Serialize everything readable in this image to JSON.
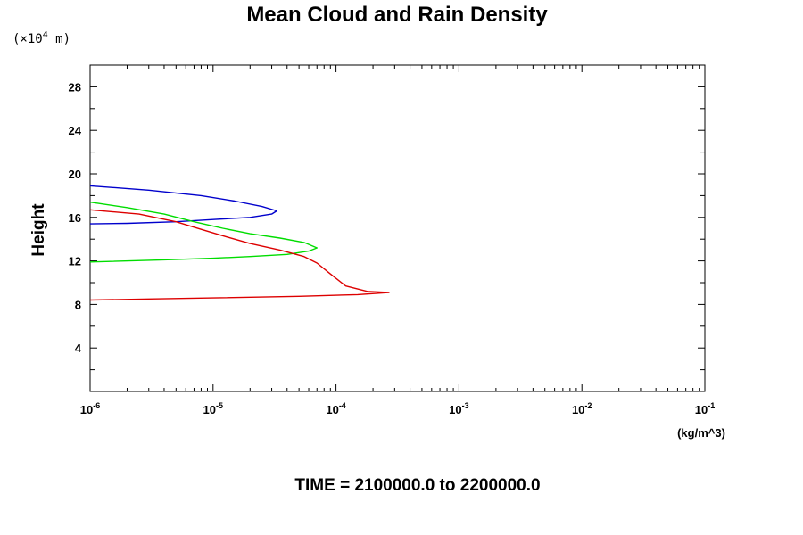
{
  "chart_data": {
    "type": "line",
    "title": "Mean Cloud and Rain Density",
    "ylabel": "Height",
    "y_scale_label_prefix": "(×10",
    "y_scale_exponent": "4",
    "y_scale_label_unit": " m)",
    "x_unit_label": "(kg/m^3)",
    "footer": "TIME = 2100000.0 to 2200000.0",
    "x_scale": "log",
    "xlim": [
      1e-06,
      0.1
    ],
    "ylim": [
      0,
      30
    ],
    "y_ticks": [
      4,
      8,
      12,
      16,
      20,
      24,
      28
    ],
    "y_tick_labels": [
      "4",
      "8",
      "12",
      "16",
      "20",
      "24",
      "28"
    ],
    "x_ticks": [
      {
        "base": "10",
        "exp": "-6",
        "value": 1e-06
      },
      {
        "base": "10",
        "exp": "-5",
        "value": 1e-05
      },
      {
        "base": "10",
        "exp": "-4",
        "value": 0.0001
      },
      {
        "base": "10",
        "exp": "-3",
        "value": 0.001
      },
      {
        "base": "10",
        "exp": "-2",
        "value": 0.01
      },
      {
        "base": "10",
        "exp": "-1",
        "value": 0.1
      }
    ],
    "grid": false,
    "legend": "none",
    "series": [
      {
        "color": "#0000cc",
        "points": [
          [
            1e-06,
            18.9
          ],
          [
            3e-06,
            18.5
          ],
          [
            8e-06,
            18.0
          ],
          [
            1.5e-05,
            17.5
          ],
          [
            2.5e-05,
            17.0
          ],
          [
            3.3e-05,
            16.6
          ],
          [
            3e-05,
            16.3
          ],
          [
            2e-05,
            16.0
          ],
          [
            1e-05,
            15.8
          ],
          [
            5e-06,
            15.6
          ],
          [
            2e-06,
            15.45
          ],
          [
            1e-06,
            15.4
          ]
        ]
      },
      {
        "color": "#00dd00",
        "points": [
          [
            1e-06,
            17.4
          ],
          [
            2e-06,
            16.9
          ],
          [
            4e-06,
            16.3
          ],
          [
            7e-06,
            15.6
          ],
          [
            1.2e-05,
            15.0
          ],
          [
            2e-05,
            14.5
          ],
          [
            3.5e-05,
            14.1
          ],
          [
            5.5e-05,
            13.7
          ],
          [
            7e-05,
            13.2
          ],
          [
            6e-05,
            12.9
          ],
          [
            4e-05,
            12.6
          ],
          [
            2e-05,
            12.4
          ],
          [
            1e-05,
            12.25
          ],
          [
            4e-06,
            12.1
          ],
          [
            1e-06,
            11.9
          ]
        ]
      },
      {
        "color": "#dd0000",
        "points": [
          [
            1e-06,
            16.7
          ],
          [
            2.5e-06,
            16.3
          ],
          [
            5e-06,
            15.6
          ],
          [
            8e-06,
            14.9
          ],
          [
            1.3e-05,
            14.2
          ],
          [
            2e-05,
            13.6
          ],
          [
            3.5e-05,
            13.0
          ],
          [
            5.5e-05,
            12.4
          ],
          [
            7e-05,
            11.8
          ],
          [
            9e-05,
            10.8
          ],
          [
            0.00012,
            9.7
          ],
          [
            0.00018,
            9.2
          ],
          [
            0.00027,
            9.1
          ],
          [
            0.00015,
            8.9
          ],
          [
            5e-05,
            8.75
          ],
          [
            1e-05,
            8.6
          ],
          [
            3e-06,
            8.5
          ],
          [
            1e-06,
            8.4
          ]
        ]
      }
    ]
  }
}
